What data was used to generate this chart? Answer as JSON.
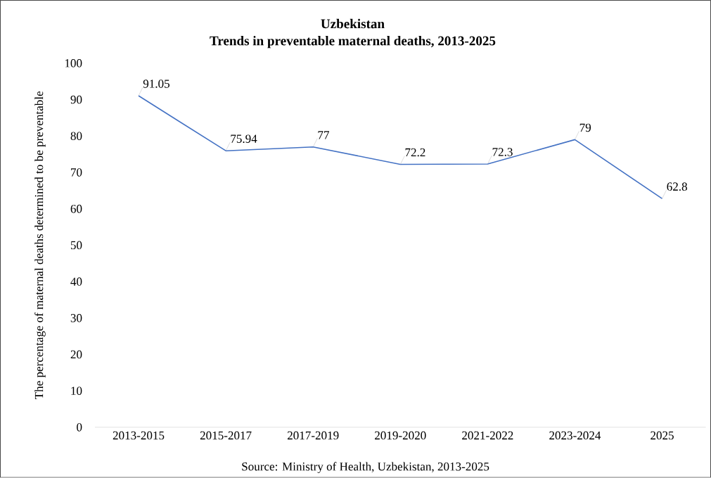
{
  "chart_data": {
    "type": "line",
    "title": "Uzbekistan",
    "subtitle": "Trends in preventable maternal deaths, 2013-2025",
    "ylabel": "The percentage of maternal deaths determined to be preventable",
    "categories": [
      "2013-2015",
      "2015-2017",
      "2017-2019",
      "2019-2020",
      "2021-2022",
      "2023-2024",
      "2025"
    ],
    "values": [
      91.05,
      75.94,
      77,
      72.2,
      72.3,
      79,
      62.8
    ],
    "color": "#4472c4",
    "ylim": [
      0,
      100
    ],
    "yticks": [
      0,
      10,
      20,
      30,
      40,
      50,
      60,
      70,
      80,
      90,
      100
    ],
    "data_labels": true,
    "grid": false,
    "marker": "none",
    "line_style": "solid",
    "annotations": [
      "Source: Ministry of Health, Uzbekistan, 2013-2025"
    ]
  }
}
